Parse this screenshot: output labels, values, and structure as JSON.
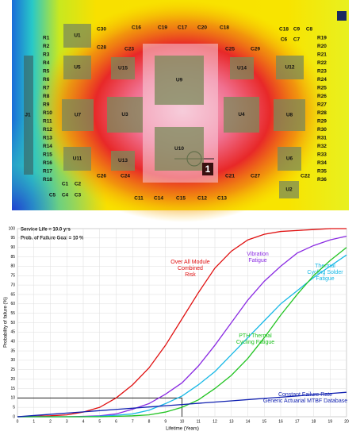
{
  "pcb": {
    "components": [
      "U1",
      "U5",
      "U7",
      "U3",
      "U9",
      "U15",
      "U14",
      "U12",
      "U4",
      "U8",
      "U10",
      "U11",
      "U13",
      "U6",
      "U2",
      "J1",
      "C30",
      "C28",
      "C23",
      "C16",
      "C19",
      "C17",
      "C20",
      "C18",
      "C25",
      "C29",
      "C18",
      "C9",
      "C8",
      "C6",
      "C7",
      "C26",
      "C24",
      "C21",
      "C27",
      "C22",
      "C11",
      "C14",
      "C15",
      "C12",
      "C13",
      "C1",
      "C2",
      "C5",
      "C4",
      "C3"
    ],
    "left_resistors": [
      "R1",
      "R2",
      "R3",
      "R4",
      "R5",
      "R6",
      "R7",
      "R8",
      "R9",
      "R10",
      "R11",
      "R12",
      "R13",
      "R14",
      "R15",
      "R16",
      "R17",
      "R18"
    ],
    "right_resistors": [
      "R19",
      "R20",
      "R21",
      "R22",
      "R23",
      "R24",
      "R25",
      "R26",
      "R27",
      "R28",
      "R29",
      "R30",
      "R31",
      "R32",
      "R33",
      "R34",
      "R35",
      "R36"
    ],
    "marker": "1"
  },
  "chart_data": {
    "type": "line",
    "annotations": [
      "Service Life = 10.0 yrs",
      "Prob. of Failure Goal = 10 %"
    ],
    "service_life_years": 10,
    "failure_goal_percent": 10,
    "x_label": "Lifetime (Years)",
    "y_label": "Probability of failure (%)",
    "x": [
      0,
      1,
      2,
      3,
      4,
      5,
      6,
      7,
      8,
      9,
      10,
      11,
      12,
      13,
      14,
      15,
      16,
      17,
      18,
      19,
      20
    ],
    "series": [
      {
        "name": [
          "Over All Module",
          "Combined",
          "Risk"
        ],
        "color": "#e01010",
        "values": [
          0,
          0.2,
          0.5,
          1,
          2.5,
          5,
          10,
          17,
          26,
          38,
          52,
          66,
          79,
          88,
          94,
          97,
          98.5,
          99,
          99.5,
          100,
          100
        ]
      },
      {
        "name": [
          "Vibration",
          "Fatigue"
        ],
        "color": "#8a2be2",
        "values": [
          0,
          0,
          0,
          0,
          0.2,
          0.5,
          1.5,
          4,
          7,
          12,
          18,
          27,
          38,
          50,
          62,
          72,
          80,
          87,
          91,
          94,
          96
        ]
      },
      {
        "name": [
          "Thermal",
          "Cycling Solder",
          "Fatigue"
        ],
        "color": "#17b8e6",
        "values": [
          0,
          0,
          0,
          0,
          0,
          0.3,
          0.8,
          1.5,
          3.5,
          7,
          11,
          17,
          24,
          33,
          42,
          51,
          60,
          67,
          74,
          80,
          86
        ]
      },
      {
        "name": [
          "PTH Thermal",
          "Cycling Fatigue"
        ],
        "color": "#22c422",
        "values": [
          0,
          0,
          0,
          0,
          0,
          0,
          0.2,
          0.5,
          1,
          2.5,
          5,
          9,
          15,
          22,
          31,
          42,
          54,
          65,
          75,
          83,
          90
        ]
      },
      {
        "name": [
          "Constant Failure Rate",
          "Generic Actuarial MTBF Database"
        ],
        "color": "#1020b0",
        "values": [
          0,
          0.65,
          1.3,
          1.95,
          2.6,
          3.25,
          3.9,
          4.55,
          5.2,
          5.85,
          6.5,
          7.15,
          7.8,
          8.45,
          9.1,
          9.75,
          10.4,
          11.05,
          11.7,
          12.35,
          13
        ]
      }
    ],
    "xlim": [
      0,
      20
    ],
    "ylim": [
      0,
      100
    ],
    "xticks": [
      0,
      1,
      2,
      3,
      4,
      5,
      6,
      7,
      8,
      9,
      10,
      11,
      12,
      13,
      14,
      15,
      16,
      17,
      18,
      19,
      20
    ],
    "yticks": [
      0,
      5,
      10,
      15,
      20,
      25,
      30,
      35,
      40,
      45,
      50,
      55,
      60,
      65,
      70,
      75,
      80,
      85,
      90,
      95,
      100
    ],
    "grid": true
  }
}
